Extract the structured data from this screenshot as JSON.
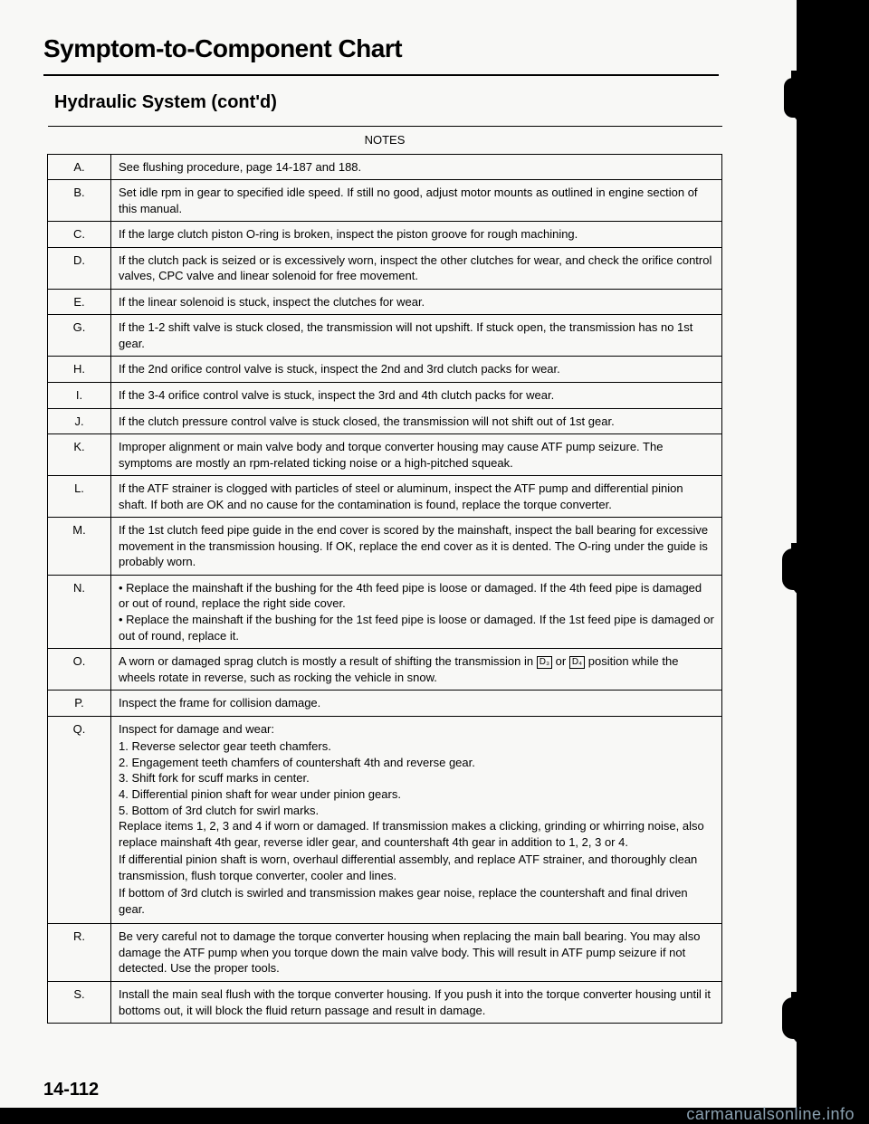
{
  "title": "Symptom-to-Component Chart",
  "subtitle": "Hydraulic System (cont'd)",
  "table_header": "NOTES",
  "page_number": "14-112",
  "watermark": "carmanualsonline.info",
  "rows": [
    {
      "letter": "A.",
      "text": "See flushing procedure, page 14-187 and 188."
    },
    {
      "letter": "B.",
      "text": "Set idle rpm in gear to specified idle speed. If still no good, adjust motor mounts as outlined in engine section of this manual."
    },
    {
      "letter": "C.",
      "text": "If the large clutch piston O-ring is broken, inspect the piston groove for rough machining."
    },
    {
      "letter": "D.",
      "text": "If the clutch pack is seized or is excessively worn, inspect the other clutches for wear, and check the orifice control valves, CPC valve and linear solenoid for free movement."
    },
    {
      "letter": "E.",
      "text": "If the linear solenoid is stuck, inspect the clutches for wear."
    },
    {
      "letter": "G.",
      "text": "If the 1-2 shift valve is stuck closed, the transmission will not upshift. If stuck open, the transmission has no 1st gear."
    },
    {
      "letter": "H.",
      "text": "If the 2nd orifice control valve is stuck, inspect the 2nd and 3rd clutch packs for wear."
    },
    {
      "letter": "I.",
      "text": "If the 3-4 orifice control valve is stuck, inspect the 3rd and 4th clutch packs for wear."
    },
    {
      "letter": "J.",
      "text": "If the clutch pressure control valve is stuck closed, the transmission will not shift out of 1st gear."
    },
    {
      "letter": "K.",
      "text": "Improper alignment or main valve body and torque converter housing may cause ATF pump seizure. The symptoms are mostly an rpm-related ticking noise or a high-pitched squeak."
    },
    {
      "letter": "L.",
      "text": "If the ATF strainer is clogged with particles of steel or aluminum, inspect the ATF pump and differential pinion shaft. If both are OK and no cause for the contamination is found, replace the torque converter."
    },
    {
      "letter": "M.",
      "text": "If the 1st clutch feed pipe guide in the end cover is scored by the mainshaft, inspect the ball bearing for excessive movement in the transmission housing. If OK, replace the end cover as it is dented. The O-ring under the guide is probably worn."
    },
    {
      "letter": "N.",
      "bullets": [
        "Replace the mainshaft if the bushing for the 4th feed pipe is loose or damaged. If the 4th feed pipe is damaged or out of round, replace the right side cover.",
        "Replace the mainshaft if the bushing for the 1st feed pipe is loose or damaged. If the 1st feed pipe is damaged or out of round, replace it."
      ]
    },
    {
      "letter": "O.",
      "text_pre": "A worn or damaged sprag clutch is mostly a result of shifting the transmission in ",
      "icon1": "D₃",
      "text_mid": " or ",
      "icon2": "D₄",
      "text_post": " position while the wheels rotate in reverse, such as rocking the vehicle in snow."
    },
    {
      "letter": "P.",
      "text": "Inspect the frame for collision damage."
    },
    {
      "letter": "Q.",
      "lead": "Inspect for damage and wear:",
      "numbered": [
        "1.  Reverse selector gear teeth chamfers.",
        "2.  Engagement teeth chamfers of countershaft 4th and reverse gear.",
        "3.  Shift fork for scuff marks in center.",
        "4.  Differential pinion shaft for wear under pinion gears.",
        "5.  Bottom of 3rd clutch for swirl marks."
      ],
      "tail": [
        "Replace items 1, 2, 3 and 4 if worn or damaged. If transmission makes a clicking, grinding or whirring noise, also replace mainshaft 4th gear, reverse idler gear, and countershaft 4th gear in addition to 1, 2, 3 or 4.",
        "If differential pinion shaft is worn, overhaul differential assembly, and replace ATF strainer, and thoroughly clean transmission, flush torque converter, cooler and lines.",
        "If bottom of 3rd clutch is swirled and transmission makes gear noise, replace the countershaft and final driven gear."
      ]
    },
    {
      "letter": "R.",
      "text": "Be very careful not to damage the torque converter housing when replacing the main ball bearing. You may also damage the ATF pump when you torque down the main valve body. This will result in ATF pump seizure if not detected. Use the proper tools."
    },
    {
      "letter": "S.",
      "text": "Install the main seal flush with the torque converter housing. If you push it into the torque converter housing until it bottoms out, it will block the fluid return passage and result in damage."
    }
  ]
}
